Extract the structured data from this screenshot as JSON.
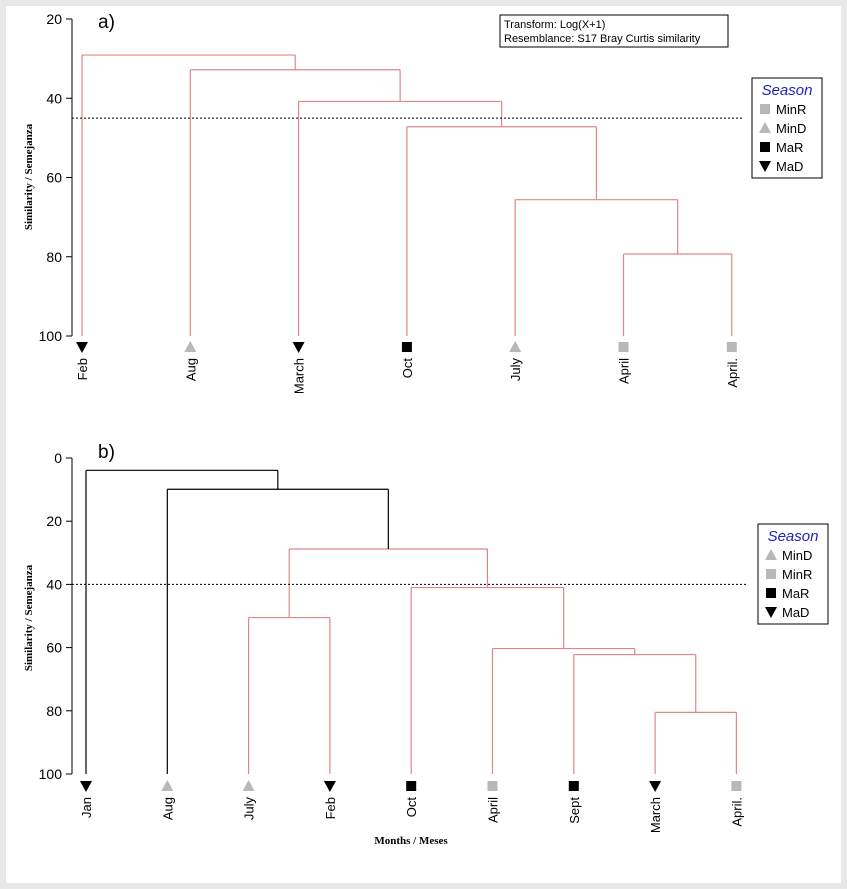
{
  "chart_data": [
    {
      "type": "dendrogram",
      "panel_label": "a)",
      "ylabel": "Similarity / Semejanza",
      "xlabel": "",
      "ylim": [
        20,
        100
      ],
      "y_ticks": [
        20,
        40,
        60,
        80,
        100
      ],
      "cut_level": 45,
      "transform_box": [
        "Transform: Log(X+1)",
        "Resemblance: S17 Bray Curtis similarity"
      ],
      "legend": {
        "title": "Season",
        "items": [
          {
            "label": "MinR",
            "marker": "square",
            "color": "#b8b8b8"
          },
          {
            "label": "MinD",
            "marker": "triangle-up",
            "color": "#b8b8b8"
          },
          {
            "label": "MaR",
            "marker": "square",
            "color": "#000000"
          },
          {
            "label": "MaD",
            "marker": "triangle-down",
            "color": "#000000"
          }
        ]
      },
      "leaves": [
        {
          "label": "Feb",
          "season": "MaD"
        },
        {
          "label": "Aug",
          "season": "MinD"
        },
        {
          "label": "March",
          "season": "MaD"
        },
        {
          "label": "Oct",
          "season": "MaR"
        },
        {
          "label": "July",
          "season": "MinD"
        },
        {
          "label": "April",
          "season": "MinR"
        },
        {
          "label": "April.",
          "season": "MinR"
        }
      ],
      "merges": [
        {
          "children": [
            "L5",
            "L6"
          ],
          "similarity": 79.3,
          "color": "#e0868a"
        },
        {
          "children": [
            "L4",
            "M0"
          ],
          "similarity": 65.6,
          "color": "#e0868a"
        },
        {
          "children": [
            "L3",
            "M1"
          ],
          "similarity": 47.2,
          "color": "#e0868a"
        },
        {
          "children": [
            "L2",
            "M2"
          ],
          "similarity": 40.8,
          "color": "#e0868a"
        },
        {
          "children": [
            "L1",
            "M3"
          ],
          "similarity": 32.8,
          "color": "#e0868a"
        },
        {
          "children": [
            "L0",
            "M4"
          ],
          "similarity": 29.1,
          "color": "#e0868a"
        }
      ]
    },
    {
      "type": "dendrogram",
      "panel_label": "b)",
      "ylabel": "Similarity / Semejanza",
      "xlabel": "Months / Meses",
      "ylim": [
        0,
        100
      ],
      "y_ticks": [
        0,
        20,
        40,
        60,
        80,
        100
      ],
      "cut_level": 40,
      "legend": {
        "title": "Season",
        "items": [
          {
            "label": "MinD",
            "marker": "triangle-up",
            "color": "#b8b8b8"
          },
          {
            "label": "MinR",
            "marker": "square",
            "color": "#b8b8b8"
          },
          {
            "label": "MaR",
            "marker": "square",
            "color": "#000000"
          },
          {
            "label": "MaD",
            "marker": "triangle-down",
            "color": "#000000"
          }
        ]
      },
      "leaves": [
        {
          "label": "Jan",
          "season": "MaD"
        },
        {
          "label": "Aug",
          "season": "MinD"
        },
        {
          "label": "July",
          "season": "MinD"
        },
        {
          "label": "Feb",
          "season": "MaD"
        },
        {
          "label": "Oct",
          "season": "MaR"
        },
        {
          "label": "April",
          "season": "MinR"
        },
        {
          "label": "Sept",
          "season": "MaR"
        },
        {
          "label": "March",
          "season": "MaD"
        },
        {
          "label": "April.",
          "season": "MinR"
        }
      ],
      "merges": [
        {
          "children": [
            "L7",
            "L8"
          ],
          "similarity": 80.5,
          "color": "#e0868a"
        },
        {
          "children": [
            "L6",
            "M0"
          ],
          "similarity": 62.2,
          "color": "#e0868a"
        },
        {
          "children": [
            "L5",
            "M1"
          ],
          "similarity": 60.3,
          "color": "#e0868a"
        },
        {
          "children": [
            "L4",
            "M2"
          ],
          "similarity": 41.0,
          "color": "#e0868a"
        },
        {
          "children": [
            "L2",
            "L3"
          ],
          "similarity": 50.5,
          "color": "#e0868a"
        },
        {
          "children": [
            "M4",
            "M3"
          ],
          "similarity": 28.8,
          "color": "#e0868a"
        },
        {
          "children": [
            "L1",
            "M5"
          ],
          "similarity": 9.9,
          "color": "#000000"
        },
        {
          "children": [
            "L0",
            "M6"
          ],
          "similarity": 3.9,
          "color": "#000000"
        }
      ]
    }
  ]
}
